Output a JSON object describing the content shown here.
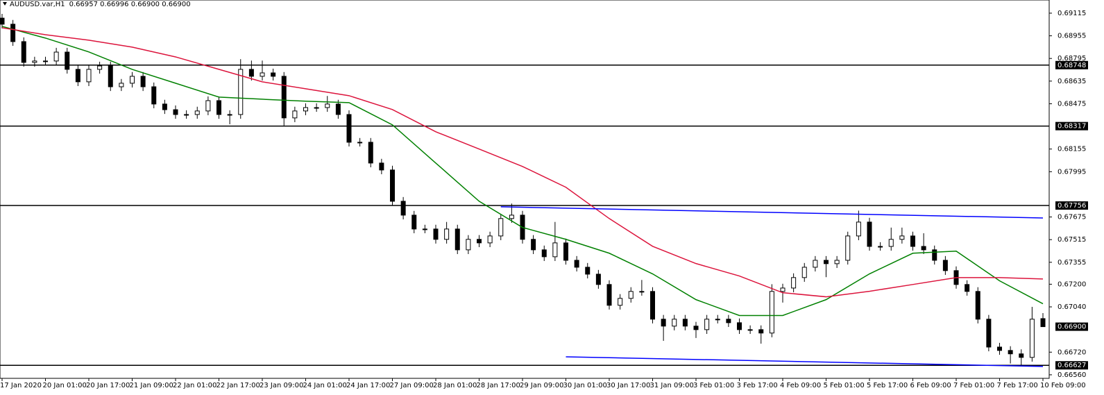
{
  "chart_data": {
    "type": "candlestick",
    "title": "AUDUSD.var,H1",
    "title_values": "0.66957 0.66996 0.66900 0.66900",
    "categories": [
      "17 Jan 2020",
      null,
      null,
      null,
      "20 Jan 01:00",
      null,
      null,
      null,
      "20 Jan 17:00",
      null,
      null,
      null,
      "21 Jan 09:00",
      null,
      null,
      null,
      "22 Jan 01:00",
      null,
      null,
      null,
      "22 Jan 17:00",
      null,
      null,
      null,
      "23 Jan 09:00",
      null,
      null,
      null,
      "24 Jan 01:00",
      null,
      null,
      null,
      "24 Jan 17:00",
      null,
      null,
      null,
      "27 Jan 09:00",
      null,
      null,
      null,
      "28 Jan 01:00",
      null,
      null,
      null,
      "28 Jan 17:00",
      null,
      null,
      null,
      "29 Jan 09:00",
      null,
      null,
      null,
      "30 Jan 01:00",
      null,
      null,
      null,
      "30 Jan 17:00",
      null,
      null,
      null,
      "31 Jan 09:00",
      null,
      null,
      null,
      "3 Feb 01:00",
      null,
      null,
      null,
      "3 Feb 17:00",
      null,
      null,
      null,
      "4 Feb 09:00",
      null,
      null,
      null,
      "5 Feb 01:00",
      null,
      null,
      null,
      "5 Feb 17:00",
      null,
      null,
      null,
      "6 Feb 09:00",
      null,
      null,
      null,
      "7 Feb 01:00",
      null,
      null,
      null,
      "7 Feb 17:00",
      null,
      null,
      null,
      "10 Feb 09:00"
    ],
    "candles": [
      [
        0.6908,
        0.6911,
        0.69007,
        0.69037
      ],
      [
        0.69037,
        0.69067,
        0.68884,
        0.68914
      ],
      [
        0.68914,
        0.68944,
        0.68737,
        0.68767
      ],
      [
        0.68767,
        0.68807,
        0.68737,
        0.68777
      ],
      [
        0.68777,
        0.68807,
        0.68747,
        0.68777
      ],
      [
        0.68777,
        0.6887,
        0.68747,
        0.6884
      ],
      [
        0.6884,
        0.6887,
        0.68688,
        0.68718
      ],
      [
        0.68718,
        0.68748,
        0.686,
        0.6863
      ],
      [
        0.6863,
        0.68748,
        0.686,
        0.68718
      ],
      [
        0.68718,
        0.68772,
        0.68688,
        0.68742
      ],
      [
        0.68742,
        0.68772,
        0.68565,
        0.68595
      ],
      [
        0.68595,
        0.6865,
        0.68565,
        0.6862
      ],
      [
        0.6862,
        0.68699,
        0.6859,
        0.68669
      ],
      [
        0.68669,
        0.68699,
        0.68565,
        0.68595
      ],
      [
        0.68595,
        0.68625,
        0.68443,
        0.68473
      ],
      [
        0.68473,
        0.68503,
        0.68403,
        0.68433
      ],
      [
        0.68433,
        0.68463,
        0.68369,
        0.68399
      ],
      [
        0.68399,
        0.68429,
        0.68369,
        0.68399
      ],
      [
        0.68399,
        0.68454,
        0.68369,
        0.68424
      ],
      [
        0.68424,
        0.68527,
        0.68394,
        0.68497
      ],
      [
        0.68497,
        0.68527,
        0.68369,
        0.68399
      ],
      [
        0.68399,
        0.68429,
        0.6833,
        0.68399
      ],
      [
        0.68399,
        0.6879,
        0.68369,
        0.68718
      ],
      [
        0.68718,
        0.6878,
        0.68639,
        0.68669
      ],
      [
        0.68669,
        0.6878,
        0.68639,
        0.68693
      ],
      [
        0.68693,
        0.68723,
        0.68639,
        0.68669
      ],
      [
        0.68669,
        0.68699,
        0.6832,
        0.68375
      ],
      [
        0.68375,
        0.68454,
        0.68345,
        0.68424
      ],
      [
        0.68424,
        0.68478,
        0.68394,
        0.68448
      ],
      [
        0.68448,
        0.68478,
        0.68418,
        0.68448
      ],
      [
        0.68448,
        0.6853,
        0.68418,
        0.68473
      ],
      [
        0.68473,
        0.68503,
        0.68369,
        0.68399
      ],
      [
        0.68399,
        0.68429,
        0.68173,
        0.68203
      ],
      [
        0.68203,
        0.68233,
        0.68173,
        0.68203
      ],
      [
        0.68203,
        0.68233,
        0.68026,
        0.68056
      ],
      [
        0.68056,
        0.68086,
        0.67977,
        0.68007
      ],
      [
        0.68007,
        0.68037,
        0.67756,
        0.67786
      ],
      [
        0.67786,
        0.67816,
        0.67658,
        0.67688
      ],
      [
        0.67688,
        0.67718,
        0.6756,
        0.6759
      ],
      [
        0.6759,
        0.6762,
        0.6756,
        0.6759
      ],
      [
        0.6759,
        0.6762,
        0.67487,
        0.67517
      ],
      [
        0.67517,
        0.6764,
        0.67487,
        0.6759
      ],
      [
        0.6759,
        0.6762,
        0.67413,
        0.67443
      ],
      [
        0.67443,
        0.67547,
        0.67413,
        0.67517
      ],
      [
        0.67517,
        0.67547,
        0.67462,
        0.67492
      ],
      [
        0.67492,
        0.67571,
        0.67462,
        0.67541
      ],
      [
        0.67541,
        0.67694,
        0.67511,
        0.67664
      ],
      [
        0.67664,
        0.6777,
        0.67634,
        0.67688
      ],
      [
        0.67688,
        0.67718,
        0.67487,
        0.67517
      ],
      [
        0.67517,
        0.67547,
        0.67413,
        0.67443
      ],
      [
        0.67443,
        0.67473,
        0.67364,
        0.67394
      ],
      [
        0.67394,
        0.6764,
        0.67364,
        0.67492
      ],
      [
        0.67492,
        0.67522,
        0.67339,
        0.67369
      ],
      [
        0.67369,
        0.67399,
        0.6729,
        0.6732
      ],
      [
        0.6732,
        0.6735,
        0.67241,
        0.67271
      ],
      [
        0.67271,
        0.67301,
        0.67168,
        0.67198
      ],
      [
        0.67198,
        0.67228,
        0.67021,
        0.67051
      ],
      [
        0.67051,
        0.6713,
        0.67021,
        0.671
      ],
      [
        0.671,
        0.67179,
        0.6707,
        0.67149
      ],
      [
        0.67149,
        0.6723,
        0.67119,
        0.67149
      ],
      [
        0.67149,
        0.67179,
        0.66923,
        0.66953
      ],
      [
        0.66953,
        0.66983,
        0.668,
        0.66904
      ],
      [
        0.66904,
        0.66983,
        0.66874,
        0.66953
      ],
      [
        0.66953,
        0.66983,
        0.66874,
        0.66904
      ],
      [
        0.66904,
        0.66934,
        0.6682,
        0.66879
      ],
      [
        0.66879,
        0.66983,
        0.66849,
        0.66953
      ],
      [
        0.66953,
        0.66983,
        0.66923,
        0.66953
      ],
      [
        0.66953,
        0.66983,
        0.66898,
        0.66928
      ],
      [
        0.66928,
        0.66958,
        0.66849,
        0.66879
      ],
      [
        0.66879,
        0.66909,
        0.66849,
        0.66879
      ],
      [
        0.66879,
        0.66909,
        0.6678,
        0.66855
      ],
      [
        0.66855,
        0.672,
        0.66825,
        0.67149
      ],
      [
        0.67149,
        0.67203,
        0.6707,
        0.67173
      ],
      [
        0.67173,
        0.67277,
        0.67143,
        0.67247
      ],
      [
        0.67247,
        0.6735,
        0.67217,
        0.6732
      ],
      [
        0.6732,
        0.67399,
        0.6729,
        0.67369
      ],
      [
        0.67369,
        0.67399,
        0.6725,
        0.67345
      ],
      [
        0.67345,
        0.67399,
        0.67315,
        0.67369
      ],
      [
        0.67369,
        0.67571,
        0.67339,
        0.67541
      ],
      [
        0.67541,
        0.6772,
        0.67511,
        0.67639
      ],
      [
        0.67639,
        0.67669,
        0.67437,
        0.67467
      ],
      [
        0.67467,
        0.67497,
        0.67437,
        0.67467
      ],
      [
        0.67467,
        0.676,
        0.67437,
        0.67517
      ],
      [
        0.67517,
        0.676,
        0.67487,
        0.67541
      ],
      [
        0.67541,
        0.67571,
        0.67437,
        0.67467
      ],
      [
        0.67467,
        0.6756,
        0.67413,
        0.67443
      ],
      [
        0.67443,
        0.67473,
        0.67339,
        0.67369
      ],
      [
        0.67369,
        0.67399,
        0.67266,
        0.67296
      ],
      [
        0.67296,
        0.67326,
        0.67168,
        0.67198
      ],
      [
        0.67198,
        0.67228,
        0.67119,
        0.67149
      ],
      [
        0.67149,
        0.67179,
        0.66923,
        0.66953
      ],
      [
        0.66953,
        0.66983,
        0.66726,
        0.66756
      ],
      [
        0.66756,
        0.66786,
        0.66702,
        0.66732
      ],
      [
        0.66732,
        0.66762,
        0.6664,
        0.66708
      ],
      [
        0.66708,
        0.6674,
        0.66627,
        0.66683
      ],
      [
        0.66683,
        0.6704,
        0.66653,
        0.66953
      ],
      [
        0.66957,
        0.66996,
        0.669,
        0.669
      ]
    ],
    "up_color": "#ffffff",
    "down_color": "#000000",
    "series": [
      {
        "color": "#008000",
        "x": [
          0,
          4,
          8,
          12,
          16,
          20,
          24,
          28,
          32,
          36,
          40,
          44,
          48,
          52,
          56,
          60,
          64,
          68,
          72,
          76,
          80,
          84,
          88,
          92,
          96
        ],
        "values": [
          0.69022,
          0.68939,
          0.68841,
          0.68718,
          0.6862,
          0.68522,
          0.68507,
          0.68493,
          0.68483,
          0.68326,
          0.68056,
          0.67786,
          0.67601,
          0.67517,
          0.67419,
          0.67273,
          0.67091,
          0.66979,
          0.66979,
          0.67091,
          0.67273,
          0.67419,
          0.67434,
          0.67224,
          0.67062
        ]
      },
      {
        "color": "#dc143c",
        "x": [
          0,
          4,
          8,
          12,
          16,
          20,
          24,
          28,
          32,
          36,
          40,
          44,
          48,
          52,
          56,
          60,
          64,
          68,
          72,
          76,
          80,
          84,
          88,
          92,
          96
        ],
        "values": [
          0.69012,
          0.68963,
          0.68924,
          0.68875,
          0.68806,
          0.68718,
          0.6863,
          0.68581,
          0.68532,
          0.68434,
          0.68277,
          0.68155,
          0.68032,
          0.67885,
          0.67664,
          0.67468,
          0.67346,
          0.67258,
          0.6714,
          0.67111,
          0.6715,
          0.67198,
          0.67247,
          0.67247,
          0.67237
        ]
      }
    ],
    "trend_lines": [
      {
        "color": "#0000ff",
        "x": [
          46,
          96
        ],
        "values": [
          0.67747,
          0.67668
        ]
      },
      {
        "color": "#0000ff",
        "x": [
          52,
          96
        ],
        "values": [
          0.66687,
          0.66619
        ]
      }
    ],
    "levels": [
      0.68748,
      0.68317,
      0.67756,
      0.66627
    ],
    "current_price": {
      "value": 0.669,
      "label": "0.66900"
    },
    "ylim": [
      0.66535,
      0.69208
    ],
    "yticks": [
      0.69115,
      0.68955,
      0.68795,
      0.68635,
      0.68475,
      0.68155,
      0.67995,
      0.67675,
      0.67515,
      0.67355,
      {
        "value": 0.672,
        "label": "0.67200"
      },
      {
        "value": 0.6704,
        "label": "0.67040"
      },
      {
        "value": 0.6672,
        "label": "0.66720"
      },
      {
        "value": 0.6656,
        "label": "0.66560"
      }
    ]
  }
}
